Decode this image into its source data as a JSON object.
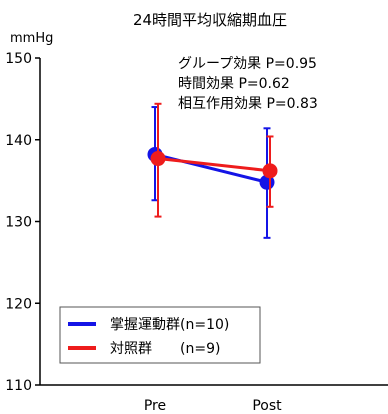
{
  "chart_data": {
    "type": "line",
    "title": "24時間平均収縮期血圧",
    "ylabel": "mmHg",
    "xlabel": "",
    "categories": [
      "Pre",
      "Post"
    ],
    "ylim": [
      110,
      150
    ],
    "yticks": [
      110,
      120,
      130,
      140,
      150
    ],
    "series": [
      {
        "name": "掌握運動群(n=10)",
        "color": "#1414e6",
        "values": [
          138.2,
          134.8
        ],
        "err_low": [
          132.6,
          128.0
        ],
        "err_high": [
          144.0,
          141.4
        ]
      },
      {
        "name": "対照群　　(n=9)",
        "color": "#ee1c1c",
        "values": [
          137.7,
          136.2
        ],
        "err_low": [
          130.6,
          131.8
        ],
        "err_high": [
          144.4,
          140.4
        ]
      }
    ],
    "annotations": [
      "グループ効果 P=0.95",
      "時間効果 P=0.62",
      "相互作用効果 P=0.83"
    ],
    "legend_position": "bottom-left",
    "grid": false
  }
}
